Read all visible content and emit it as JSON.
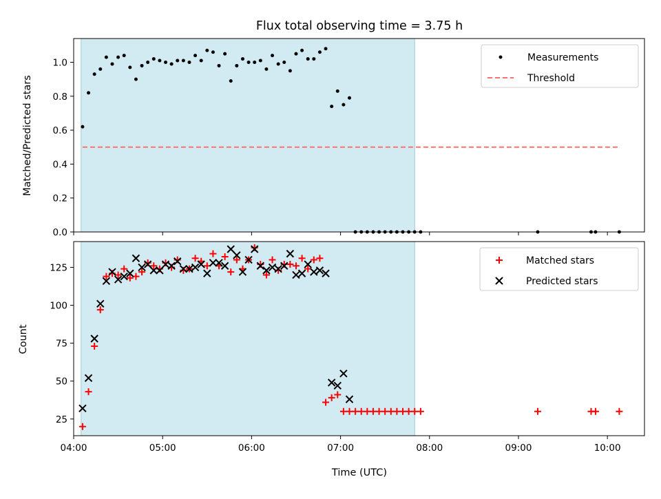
{
  "chart_data": [
    {
      "type": "scatter",
      "title": "Flux total observing time = 3.75 h",
      "xlabel": "",
      "ylabel": "Matched/Predicted stars",
      "xlim": [
        "04:00",
        "10:25"
      ],
      "ylim": [
        0,
        1.14
      ],
      "xticks": [
        "04:00",
        "05:00",
        "06:00",
        "07:00",
        "08:00",
        "09:00",
        "10:00"
      ],
      "yticks": [
        "0.0",
        "0.2",
        "0.4",
        "0.6",
        "0.8",
        "1.0"
      ],
      "shaded_region": {
        "from": "04:05",
        "to": "07:50",
        "color": "#add8e6"
      },
      "grid": false,
      "legend_position": "top-right",
      "series": [
        {
          "name": "Measurements",
          "marker": "dot",
          "color": "#000000",
          "points": [
            [
              "04:06",
              0.62
            ],
            [
              "04:10",
              0.82
            ],
            [
              "04:14",
              0.93
            ],
            [
              "04:18",
              0.96
            ],
            [
              "04:22",
              1.03
            ],
            [
              "04:26",
              0.99
            ],
            [
              "04:30",
              1.03
            ],
            [
              "04:34",
              1.04
            ],
            [
              "04:38",
              0.97
            ],
            [
              "04:42",
              0.9
            ],
            [
              "04:46",
              0.98
            ],
            [
              "04:50",
              1.0
            ],
            [
              "04:54",
              1.02
            ],
            [
              "04:58",
              1.01
            ],
            [
              "05:02",
              1.0
            ],
            [
              "05:06",
              0.99
            ],
            [
              "05:10",
              1.01
            ],
            [
              "05:14",
              1.01
            ],
            [
              "05:18",
              1.0
            ],
            [
              "05:22",
              1.04
            ],
            [
              "05:26",
              1.01
            ],
            [
              "05:30",
              1.07
            ],
            [
              "05:34",
              1.06
            ],
            [
              "05:38",
              0.98
            ],
            [
              "05:42",
              1.05
            ],
            [
              "05:46",
              0.89
            ],
            [
              "05:50",
              0.98
            ],
            [
              "05:54",
              1.02
            ],
            [
              "05:58",
              1.0
            ],
            [
              "06:02",
              1.0
            ],
            [
              "06:06",
              1.01
            ],
            [
              "06:10",
              0.96
            ],
            [
              "06:14",
              1.04
            ],
            [
              "06:18",
              0.99
            ],
            [
              "06:22",
              1.0
            ],
            [
              "06:26",
              0.95
            ],
            [
              "06:30",
              1.05
            ],
            [
              "06:34",
              1.07
            ],
            [
              "06:38",
              1.02
            ],
            [
              "06:42",
              1.02
            ],
            [
              "06:46",
              1.06
            ],
            [
              "06:50",
              1.08
            ],
            [
              "06:54",
              0.74
            ],
            [
              "06:58",
              0.83
            ],
            [
              "07:02",
              0.75
            ],
            [
              "07:06",
              0.79
            ],
            [
              "07:10",
              0.0
            ],
            [
              "07:14",
              0.0
            ],
            [
              "07:18",
              0.0
            ],
            [
              "07:22",
              0.0
            ],
            [
              "07:26",
              0.0
            ],
            [
              "07:30",
              0.0
            ],
            [
              "07:34",
              0.0
            ],
            [
              "07:38",
              0.0
            ],
            [
              "07:42",
              0.0
            ],
            [
              "07:46",
              0.0
            ],
            [
              "07:50",
              0.0
            ],
            [
              "07:54",
              0.0
            ],
            [
              "09:13",
              0.0
            ],
            [
              "09:49",
              0.0
            ],
            [
              "09:52",
              0.0
            ],
            [
              "10:08",
              0.0
            ]
          ]
        },
        {
          "name": "Threshold",
          "type": "line",
          "dash": "dashed",
          "color": "#ff7070",
          "points": [
            [
              "04:06",
              0.5
            ],
            [
              "10:08",
              0.5
            ]
          ]
        }
      ]
    },
    {
      "type": "scatter",
      "title": "",
      "xlabel": "Time (UTC)",
      "ylabel": "Count",
      "xlim": [
        "04:00",
        "10:25"
      ],
      "ylim": [
        14,
        142
      ],
      "xticks": [
        "04:00",
        "05:00",
        "06:00",
        "07:00",
        "08:00",
        "09:00",
        "10:00"
      ],
      "yticks": [
        "25",
        "50",
        "75",
        "100",
        "125"
      ],
      "shaded_region": {
        "from": "04:05",
        "to": "07:50",
        "color": "#add8e6"
      },
      "grid": false,
      "legend_position": "top-right",
      "series": [
        {
          "name": "Matched stars",
          "marker": "plus",
          "color": "#ff0000",
          "points": [
            [
              "04:06",
              20
            ],
            [
              "04:10",
              43
            ],
            [
              "04:14",
              73
            ],
            [
              "04:18",
              97
            ],
            [
              "04:22",
              119
            ],
            [
              "04:26",
              121
            ],
            [
              "04:30",
              120
            ],
            [
              "04:34",
              124
            ],
            [
              "04:38",
              118
            ],
            [
              "04:42",
              119
            ],
            [
              "04:46",
              122
            ],
            [
              "04:50",
              128
            ],
            [
              "04:54",
              126
            ],
            [
              "04:58",
              124
            ],
            [
              "05:02",
              128
            ],
            [
              "05:06",
              125
            ],
            [
              "05:10",
              130
            ],
            [
              "05:14",
              123
            ],
            [
              "05:18",
              124
            ],
            [
              "05:22",
              131
            ],
            [
              "05:26",
              129
            ],
            [
              "05:30",
              126
            ],
            [
              "05:34",
              134
            ],
            [
              "05:38",
              126
            ],
            [
              "05:42",
              132
            ],
            [
              "05:46",
              122
            ],
            [
              "05:50",
              130
            ],
            [
              "05:54",
              124
            ],
            [
              "05:58",
              130
            ],
            [
              "06:02",
              138
            ],
            [
              "06:06",
              127
            ],
            [
              "06:10",
              120
            ],
            [
              "06:14",
              130
            ],
            [
              "06:18",
              123
            ],
            [
              "06:22",
              127
            ],
            [
              "06:26",
              127
            ],
            [
              "06:30",
              126
            ],
            [
              "06:34",
              131
            ],
            [
              "06:38",
              124
            ],
            [
              "06:42",
              130
            ],
            [
              "06:46",
              131
            ],
            [
              "06:50",
              36
            ],
            [
              "06:54",
              39
            ],
            [
              "06:58",
              41
            ],
            [
              "07:02",
              30
            ],
            [
              "07:06",
              30
            ],
            [
              "07:10",
              30
            ],
            [
              "07:14",
              30
            ],
            [
              "07:18",
              30
            ],
            [
              "07:22",
              30
            ],
            [
              "07:26",
              30
            ],
            [
              "07:30",
              30
            ],
            [
              "07:34",
              30
            ],
            [
              "07:38",
              30
            ],
            [
              "07:42",
              30
            ],
            [
              "07:46",
              30
            ],
            [
              "07:50",
              30
            ],
            [
              "07:54",
              30
            ],
            [
              "09:13",
              30
            ],
            [
              "09:49",
              30
            ],
            [
              "09:52",
              30
            ],
            [
              "10:08",
              30
            ]
          ]
        },
        {
          "name": "Predicted stars",
          "marker": "x",
          "color": "#000000",
          "points": [
            [
              "04:06",
              32
            ],
            [
              "04:10",
              52
            ],
            [
              "04:14",
              78
            ],
            [
              "04:18",
              101
            ],
            [
              "04:22",
              116
            ],
            [
              "04:26",
              122
            ],
            [
              "04:30",
              117
            ],
            [
              "04:34",
              119
            ],
            [
              "04:38",
              121
            ],
            [
              "04:42",
              131
            ],
            [
              "04:46",
              125
            ],
            [
              "04:50",
              127
            ],
            [
              "04:54",
              123
            ],
            [
              "04:58",
              123
            ],
            [
              "05:02",
              127
            ],
            [
              "05:06",
              126
            ],
            [
              "05:10",
              129
            ],
            [
              "05:14",
              124
            ],
            [
              "05:18",
              124
            ],
            [
              "05:22",
              125
            ],
            [
              "05:26",
              127
            ],
            [
              "05:30",
              121
            ],
            [
              "05:34",
              128
            ],
            [
              "05:38",
              128
            ],
            [
              "05:42",
              126
            ],
            [
              "05:46",
              137
            ],
            [
              "05:50",
              133
            ],
            [
              "05:54",
              122
            ],
            [
              "05:58",
              130
            ],
            [
              "06:02",
              137
            ],
            [
              "06:06",
              126
            ],
            [
              "06:10",
              123
            ],
            [
              "06:14",
              125
            ],
            [
              "06:18",
              124
            ],
            [
              "06:22",
              126
            ],
            [
              "06:26",
              134
            ],
            [
              "06:30",
              120
            ],
            [
              "06:34",
              121
            ],
            [
              "06:38",
              127
            ],
            [
              "06:42",
              122
            ],
            [
              "06:46",
              123
            ],
            [
              "06:50",
              121
            ],
            [
              "06:54",
              49
            ],
            [
              "06:58",
              47
            ],
            [
              "07:02",
              55
            ],
            [
              "07:06",
              38
            ]
          ]
        }
      ]
    }
  ]
}
